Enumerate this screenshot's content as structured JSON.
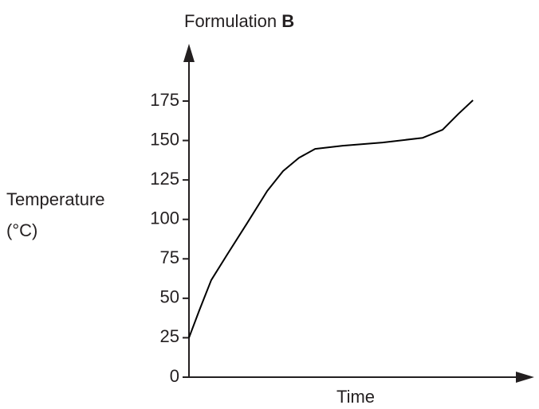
{
  "chart_data": {
    "type": "line",
    "title": "Formulation",
    "title_bold": "B",
    "xlabel": "Time",
    "ylabel": [
      "Temperature",
      "(°C)"
    ],
    "x": [
      0,
      3,
      6.6,
      11.3,
      17.3,
      23.2,
      27.9,
      32.6,
      37.4,
      45.6,
      57.4,
      69.3,
      75.2,
      79.9,
      84.2
    ],
    "values": [
      25,
      42,
      61.5,
      77.6,
      97.8,
      118,
      130.6,
      139,
      144.7,
      146.7,
      148.7,
      151.7,
      156.8,
      166.9,
      175.5
    ],
    "color": "#000000",
    "xlim": [
      0,
      100
    ],
    "ylim": [
      0,
      175
    ],
    "yticks": [
      0,
      25,
      50,
      75,
      100,
      125,
      150,
      175
    ]
  }
}
